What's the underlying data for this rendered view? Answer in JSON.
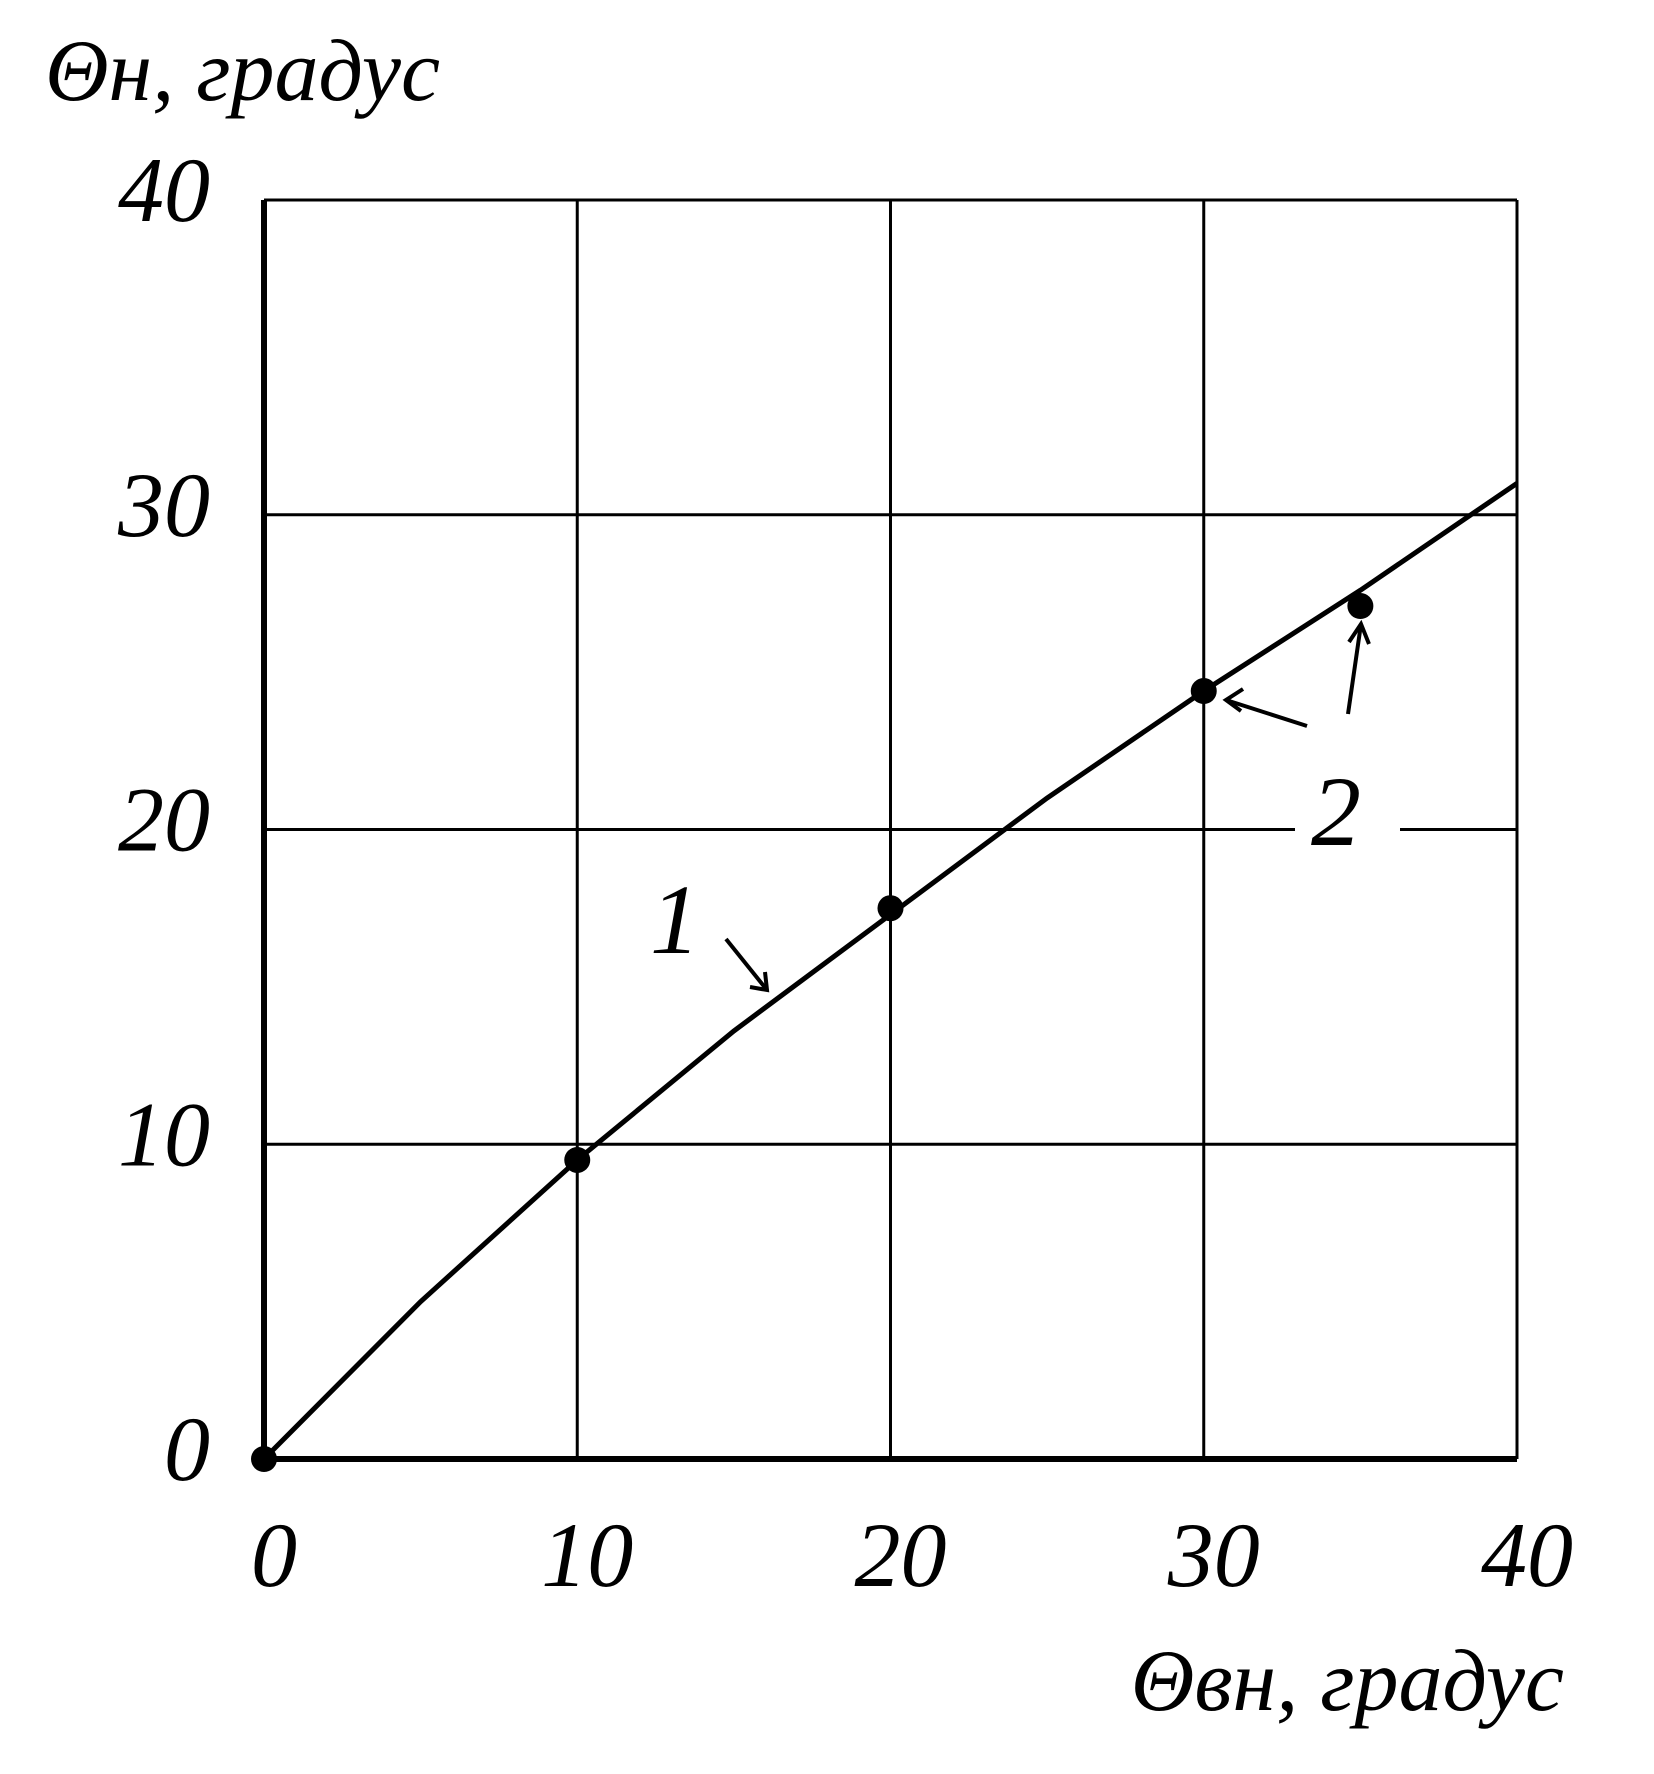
{
  "chart_data": {
    "type": "line",
    "xlabel": "Θвн, градус",
    "ylabel": "Θн, градус",
    "x": [
      0,
      5,
      10,
      15,
      20,
      25,
      30,
      35,
      40
    ],
    "series": [
      {
        "color": "#000000",
        "values": [
          0,
          5,
          9.5,
          13.6,
          17.3,
          21,
          24.4,
          27.6,
          31
        ]
      }
    ],
    "points": {
      "x": [
        0,
        10,
        20,
        30,
        35
      ],
      "values": [
        0,
        9.5,
        17.5,
        24.4,
        27.1
      ],
      "color": "#000000"
    },
    "annotations": [
      "1",
      "2"
    ],
    "xlim": [
      0,
      40
    ],
    "xticks": [
      0,
      10,
      20,
      30,
      40
    ],
    "ylim": [
      0,
      40
    ],
    "yticks": [
      0,
      10,
      20,
      30,
      40
    ],
    "grid": true
  }
}
